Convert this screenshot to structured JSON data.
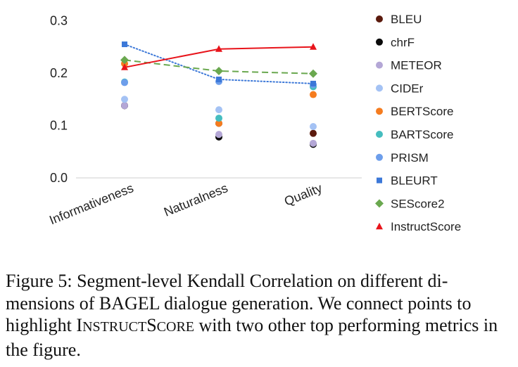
{
  "chart_data": {
    "type": "scatter",
    "categories": [
      "Informativeness",
      "Naturalness",
      "Quality"
    ],
    "ylim": [
      0.0,
      0.3
    ],
    "yticks": [
      "0.0",
      "0.1",
      "0.2",
      "0.3"
    ],
    "yticks_values": [
      0.0,
      0.1,
      0.2,
      0.3
    ],
    "grid": false,
    "legend_position": "right",
    "series": [
      {
        "name": "BLEU",
        "values": [
          0.138,
          0.104,
          0.085
        ],
        "color": "#5b1a0d",
        "marker": "circle",
        "line": "none"
      },
      {
        "name": "chrF",
        "values": [
          0.138,
          0.078,
          0.064
        ],
        "color": "#0a0a0a",
        "marker": "circle",
        "line": "none"
      },
      {
        "name": "METEOR",
        "values": [
          0.138,
          0.083,
          0.066
        ],
        "color": "#b4a7d6",
        "marker": "circle",
        "line": "none"
      },
      {
        "name": "CIDEr",
        "values": [
          0.15,
          0.13,
          0.098
        ],
        "color": "#a4c2f4",
        "marker": "circle",
        "line": "none"
      },
      {
        "name": "BERTScore",
        "values": [
          0.218,
          0.104,
          0.159
        ],
        "color": "#f57c1f",
        "marker": "circle",
        "line": "none"
      },
      {
        "name": "BARTScore",
        "values": [
          0.183,
          0.114,
          0.174
        ],
        "color": "#45bdbf",
        "marker": "circle",
        "line": "none"
      },
      {
        "name": "PRISM",
        "values": [
          0.182,
          0.184,
          0.178
        ],
        "color": "#6d9eeb",
        "marker": "circle",
        "line": "none"
      },
      {
        "name": "BLEURT",
        "values": [
          0.255,
          0.188,
          0.18
        ],
        "color": "#3c78d8",
        "marker": "square",
        "line": "dotted"
      },
      {
        "name": "SEScore2",
        "values": [
          0.225,
          0.204,
          0.199
        ],
        "color": "#6aa84f",
        "marker": "diamond",
        "line": "dashed"
      },
      {
        "name": "InstructScore",
        "values": [
          0.211,
          0.246,
          0.25
        ],
        "color": "#e8141b",
        "marker": "triangle",
        "line": "solid"
      }
    ]
  },
  "caption": {
    "prefix": "Figure 5: Segment-level Kendall Correlation on different di- mensions of BAGEL dialogue generation. We connect points to highlight ",
    "sc_1_big": "I",
    "sc_1_small": "NSTRUCT",
    "sc_2_big": "S",
    "sc_2_small": "CORE",
    "suffix": " with two other top performing metrics in the figure."
  }
}
